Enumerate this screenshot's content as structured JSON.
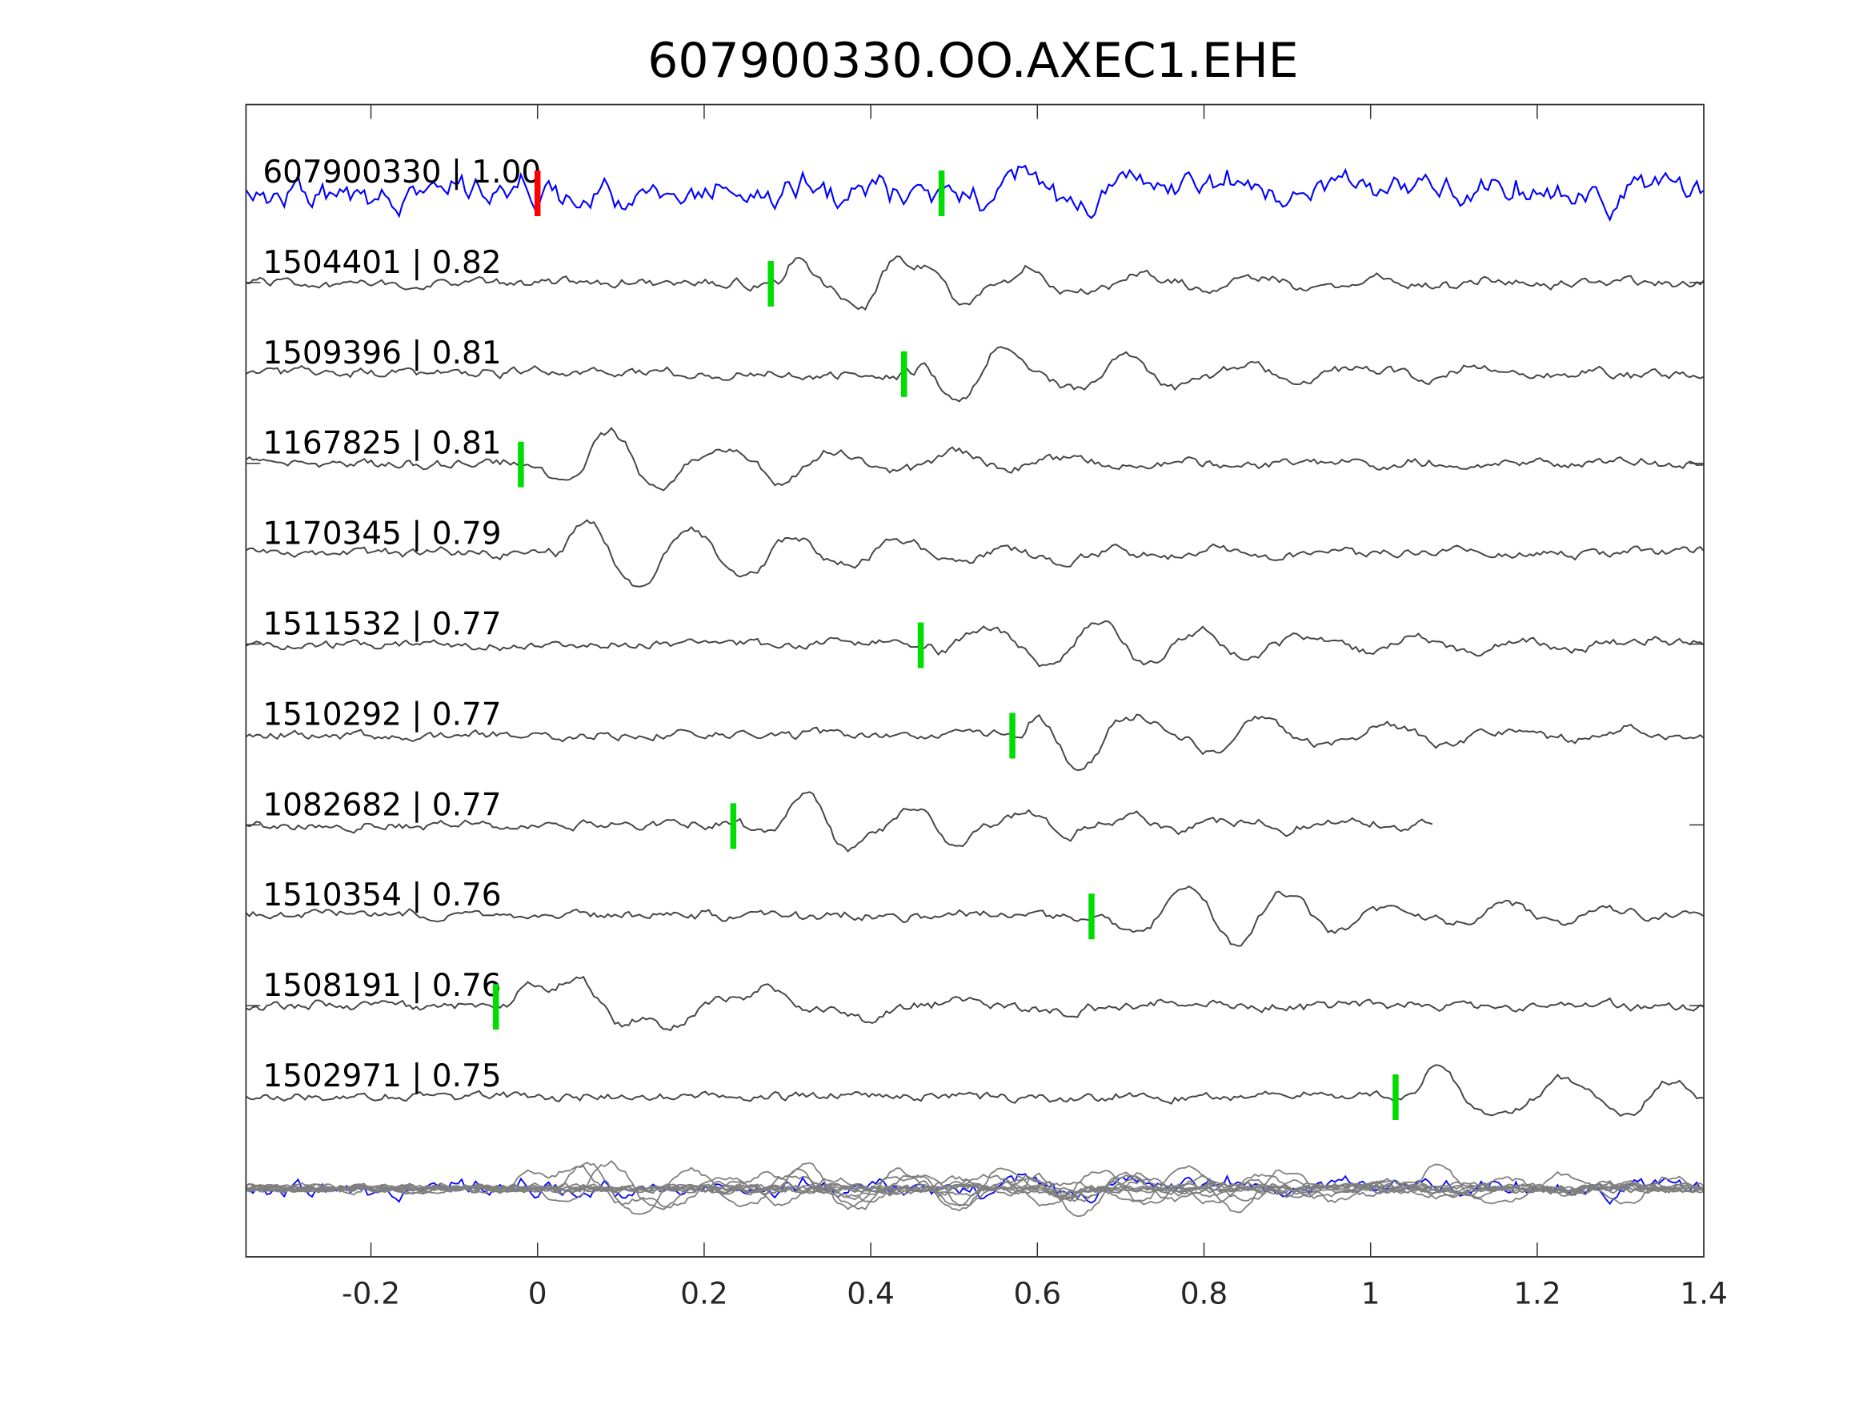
{
  "chart_data": {
    "type": "line",
    "title": "607900330.OO.AXEC1.EHE",
    "xlabel": "",
    "ylabel": "",
    "xlim": [
      -0.35,
      1.4
    ],
    "xticks": [
      -0.2,
      0,
      0.2,
      0.4,
      0.6,
      0.8,
      1,
      1.2,
      1.4
    ],
    "xtick_labels": [
      "-0.2",
      "0",
      "0.2",
      "0.4",
      "0.6",
      "0.8",
      "1",
      "1.2",
      "1.4"
    ],
    "grid": false,
    "colors": {
      "template": "#0000ff",
      "trace": "#444444",
      "stack": "#7f7f7f",
      "pick_ref": "#ff0000",
      "pick": "#00dd00"
    },
    "series": [
      {
        "id": "607900330",
        "score": "1.00",
        "label": "607900330 | 1.00",
        "pick": 0.0,
        "pick2": 0.485,
        "template": true,
        "end": 1.4
      },
      {
        "id": "1504401",
        "score": "0.82",
        "label": "1504401 | 0.82",
        "pick": 0.28,
        "end": 1.4
      },
      {
        "id": "1509396",
        "score": "0.81",
        "label": "1509396 | 0.81",
        "pick": 0.44,
        "end": 1.4
      },
      {
        "id": "1167825",
        "score": "0.81",
        "label": "1167825 | 0.81",
        "pick": -0.02,
        "end": 1.4
      },
      {
        "id": "1170345",
        "score": "0.79",
        "label": "1170345 | 0.79",
        "pick": null,
        "onset": 0.01,
        "end": 1.4
      },
      {
        "id": "1511532",
        "score": "0.77",
        "label": "1511532 | 0.77",
        "pick": 0.46,
        "end": 1.4
      },
      {
        "id": "1510292",
        "score": "0.77",
        "label": "1510292 | 0.77",
        "pick": 0.57,
        "end": 1.4
      },
      {
        "id": "1082682",
        "score": "0.77",
        "label": "1082682 | 0.77",
        "pick": 0.235,
        "end": 1.075
      },
      {
        "id": "1510354",
        "score": "0.76",
        "label": "1510354 | 0.76",
        "pick": 0.665,
        "end": 1.4
      },
      {
        "id": "1508191",
        "score": "0.76",
        "label": "1508191 | 0.76",
        "pick": -0.05,
        "end": 1.4
      },
      {
        "id": "1502971",
        "score": "0.75",
        "label": "1502971 | 0.75",
        "pick": 1.03,
        "end": 1.4
      }
    ]
  }
}
